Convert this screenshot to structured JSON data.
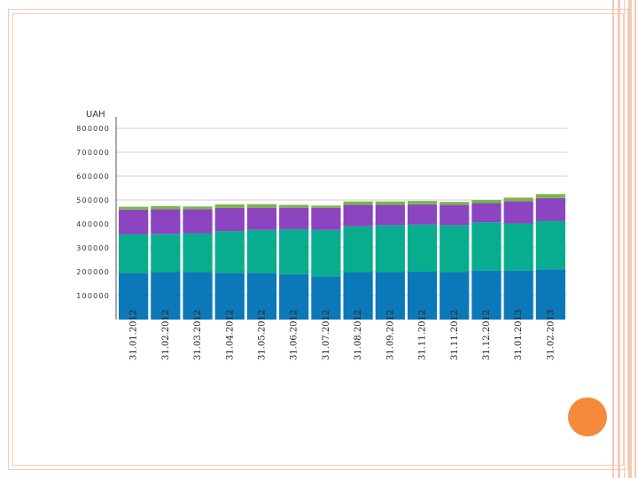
{
  "chart_data": {
    "type": "bar",
    "stacked": true,
    "ylabel": "UAH",
    "ylim": [
      0,
      800000
    ],
    "yticks": [
      "100000",
      "200000",
      "300000",
      "400000",
      "500000",
      "600000",
      "700000",
      "800000"
    ],
    "grid": true,
    "categories": [
      "31.01.2012",
      "31.02.2012",
      "31.03.2012",
      "31.04.2012",
      "31.05.2012",
      "31.06.2012",
      "31.07.2012",
      "31.08.2012",
      "31.09.2012",
      "31.11.2012",
      "31.11.2012",
      "31.12.2012",
      "31.01.2013",
      "31.02.2013"
    ],
    "series": [
      {
        "color": "#0b78b9",
        "values": [
          195000,
          198000,
          198000,
          195000,
          195000,
          190000,
          180000,
          198000,
          198000,
          200000,
          198000,
          205000,
          205000,
          210000
        ]
      },
      {
        "color": "#07ad8e",
        "values": [
          162000,
          160000,
          163000,
          175000,
          180000,
          188000,
          195000,
          192000,
          197000,
          197000,
          197000,
          202000,
          197000,
          203000
        ]
      },
      {
        "color": "#8c44c1",
        "values": [
          103000,
          103000,
          100000,
          97000,
          93000,
          90000,
          92000,
          90000,
          85000,
          85000,
          85000,
          80000,
          93000,
          95000
        ]
      },
      {
        "color": "#7ab54a",
        "values": [
          12000,
          14000,
          12000,
          15000,
          15000,
          12000,
          10000,
          14000,
          14000,
          14000,
          12000,
          13000,
          15000,
          17000
        ]
      }
    ]
  }
}
